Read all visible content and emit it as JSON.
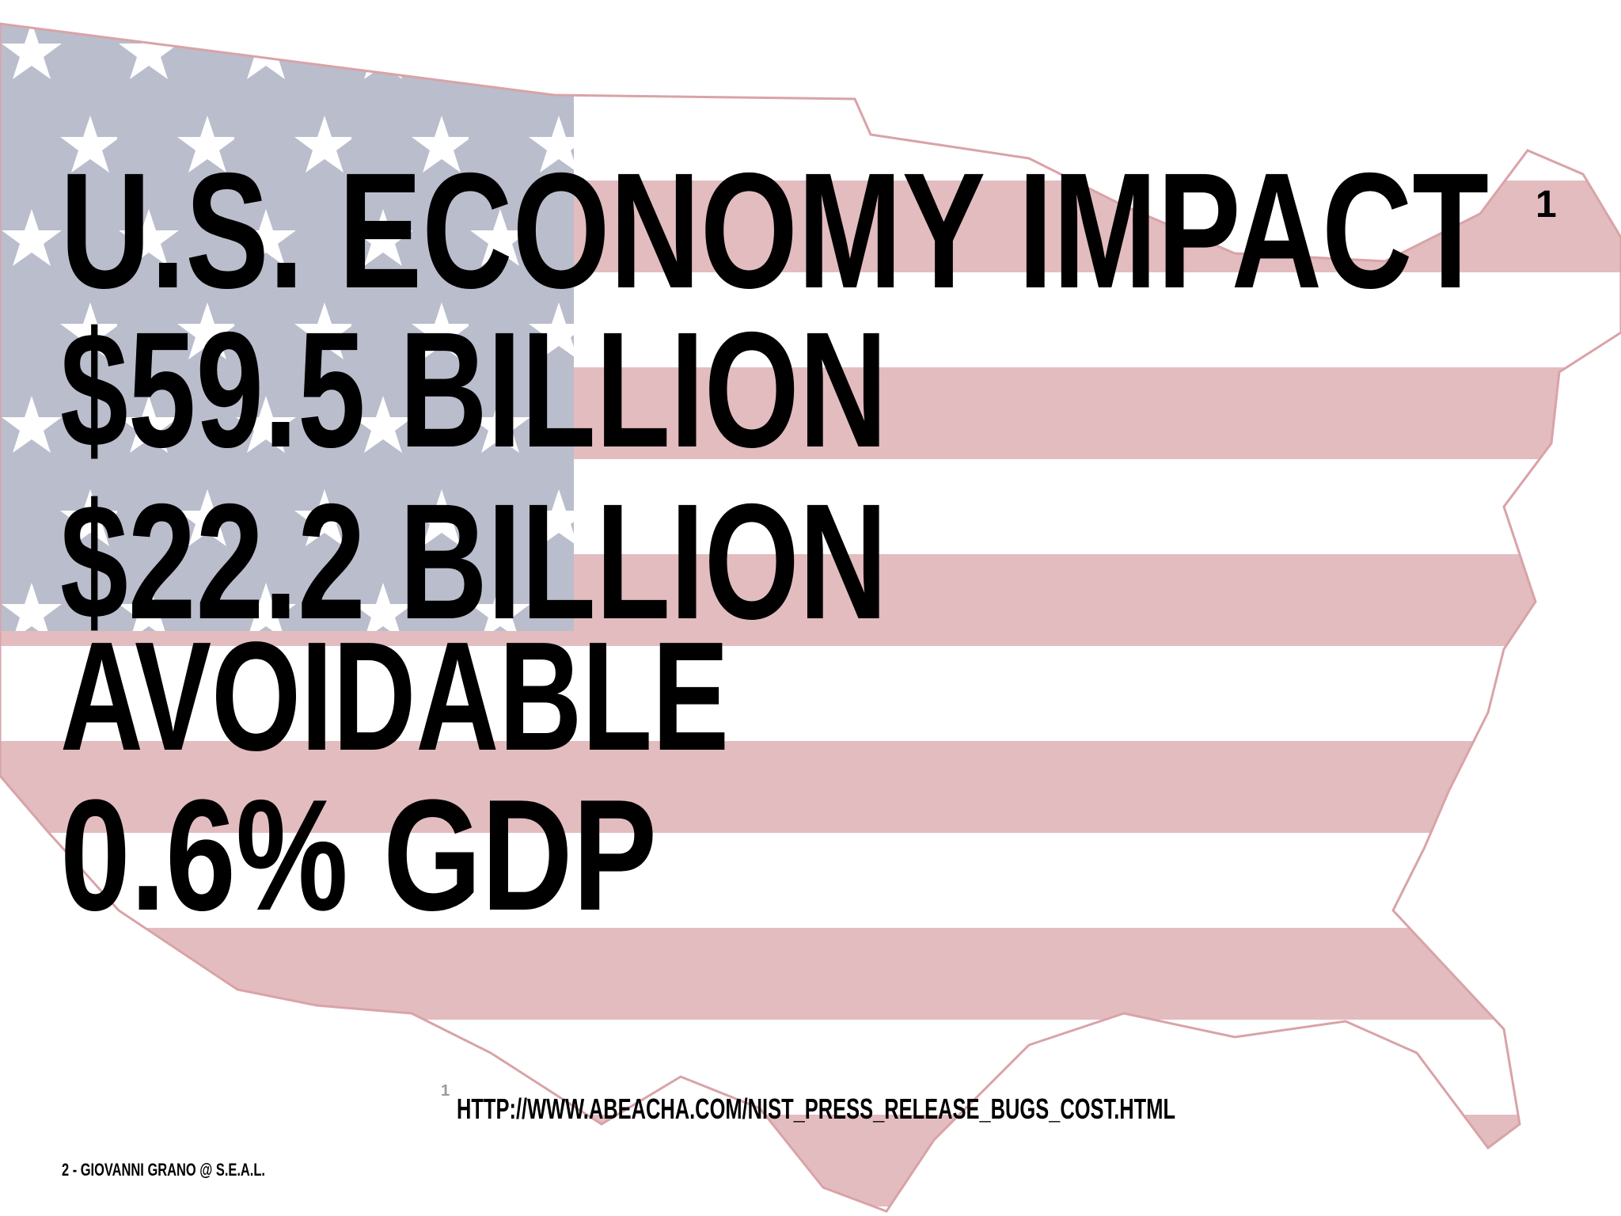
{
  "slide": {
    "title": "U.S. ECONOMY IMPACT",
    "title_footnote": "1",
    "lines": [
      "$59.5 BILLION",
      "$22.2 BILLION",
      "AVOIDABLE",
      "0.6% GDP"
    ],
    "footnote": {
      "number": "1",
      "text": "HTTP://WWW.ABEACHA.COM/NIST_PRESS_RELEASE_BUGS_COST.HTML"
    },
    "footer": "2 - GIOVANNI GRANO @ S.E.A.L."
  }
}
